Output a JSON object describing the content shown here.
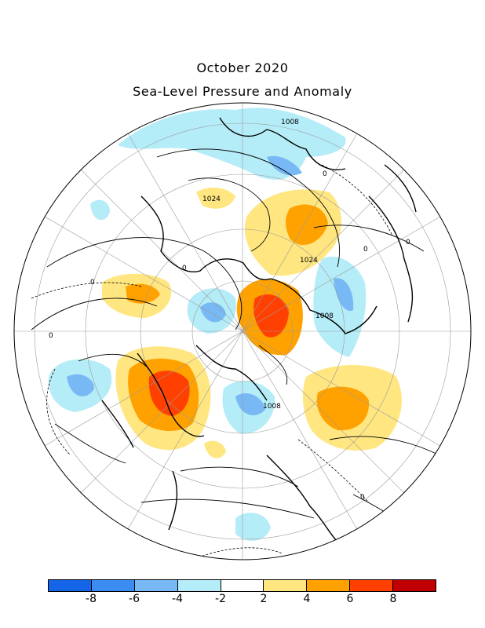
{
  "title": "October 2020",
  "subtitle": "Sea-Level Pressure and Anomaly",
  "contour_labels": [
    "1008",
    "0",
    "1024",
    "0",
    "0",
    "1024",
    "0",
    "0",
    "1008",
    "0",
    "1008",
    "0"
  ],
  "colorbar": {
    "colors": [
      "#1565e8",
      "#3a8cf0",
      "#78b8f5",
      "#b4ecf7",
      "#ffffff",
      "#ffe680",
      "#ffa200",
      "#ff4000",
      "#c00000"
    ],
    "tick_labels": [
      "-8",
      "-6",
      "-4",
      "-2",
      "2",
      "4",
      "6",
      "8"
    ]
  }
}
